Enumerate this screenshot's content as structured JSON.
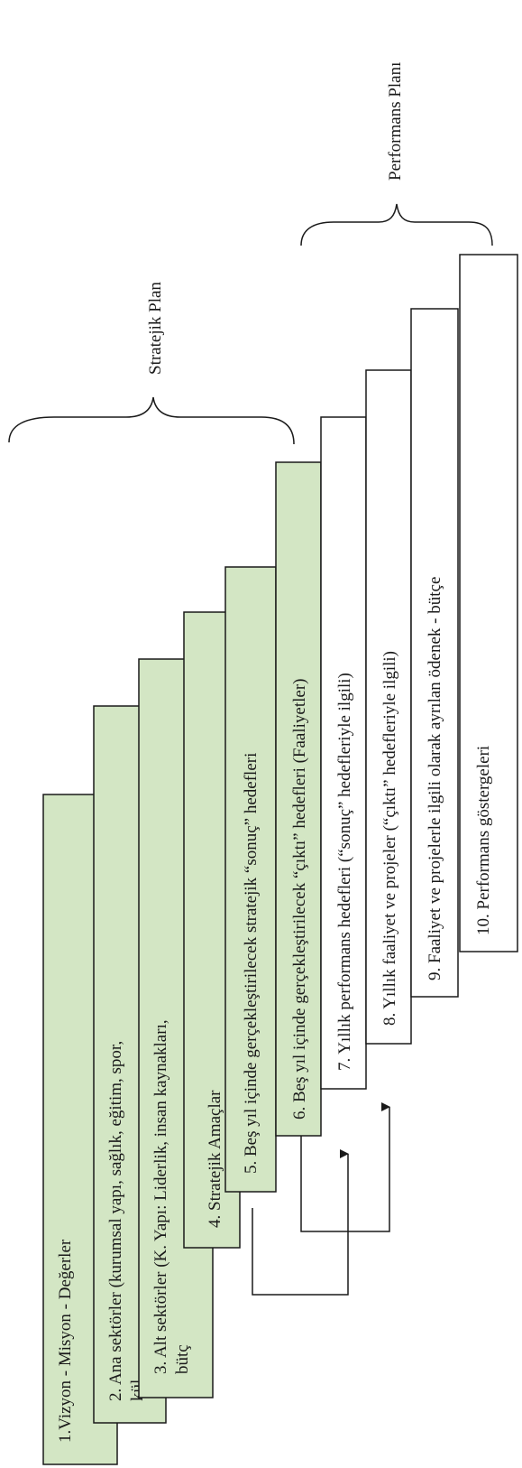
{
  "diagram": {
    "colors": {
      "green_fill": "#d3e6c4",
      "white_fill": "#ffffff",
      "stroke": "#1a1a1a"
    },
    "brackets": {
      "strategic_plan": "Stratejik Plan",
      "performance_plan": "Performans Planı"
    },
    "steps": [
      {
        "lines": [
          "1.Vizyon - Misyon - Değerler"
        ]
      },
      {
        "lines": [
          "2. Ana sektörler  (kurumsal yapı, sağlık, eğitim, spor,",
          "kül"
        ]
      },
      {
        "lines": [
          "3. Alt sektörler  (K. Yapı: Liderlik, insan kaynakları,",
          "bütç"
        ]
      },
      {
        "lines": [
          "4. Stratejik Amaçlar"
        ]
      },
      {
        "lines": [
          "5. Beş yıl içinde gerçekleştirilecek stratejik “sonuç” hedefleri"
        ]
      },
      {
        "lines": [
          "6. Beş yıl içinde gerçekleştirilecek “çıktı” hedefleri (Faaliyetler)"
        ]
      },
      {
        "lines": [
          "7. Yıllık performans hedefleri (“sonuç” hedefleriyle ilgili)"
        ]
      },
      {
        "lines": [
          "8. Yıllık faaliyet ve projeler (“çıktı” hedefleriyle ilgili)"
        ]
      },
      {
        "lines": [
          "9. Faaliyet ve projelerle ilgili olarak ayrılan ödenek - bütçe"
        ]
      },
      {
        "lines": [
          "10. Performans göstergeleri"
        ]
      }
    ]
  }
}
